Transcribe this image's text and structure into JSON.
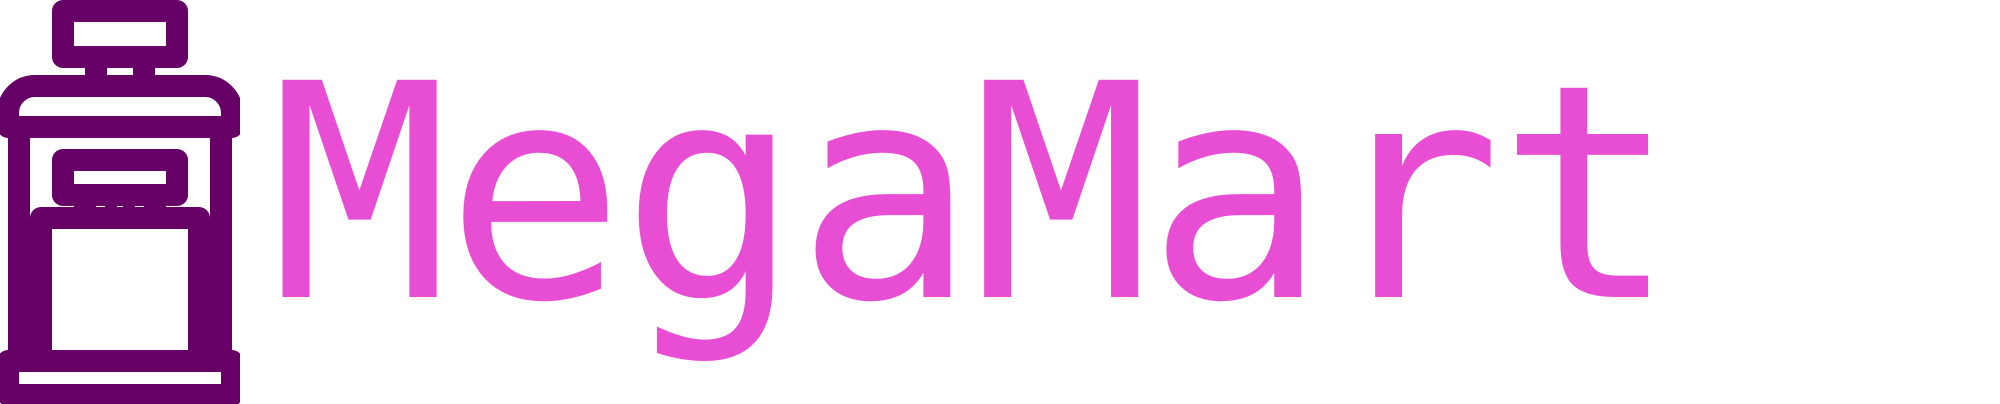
{
  "brand": {
    "name": "MegaMart",
    "icon": "storefront-icon",
    "icon_color": "#660066",
    "text_color": "#e84ed3",
    "background": "#ffffff"
  }
}
